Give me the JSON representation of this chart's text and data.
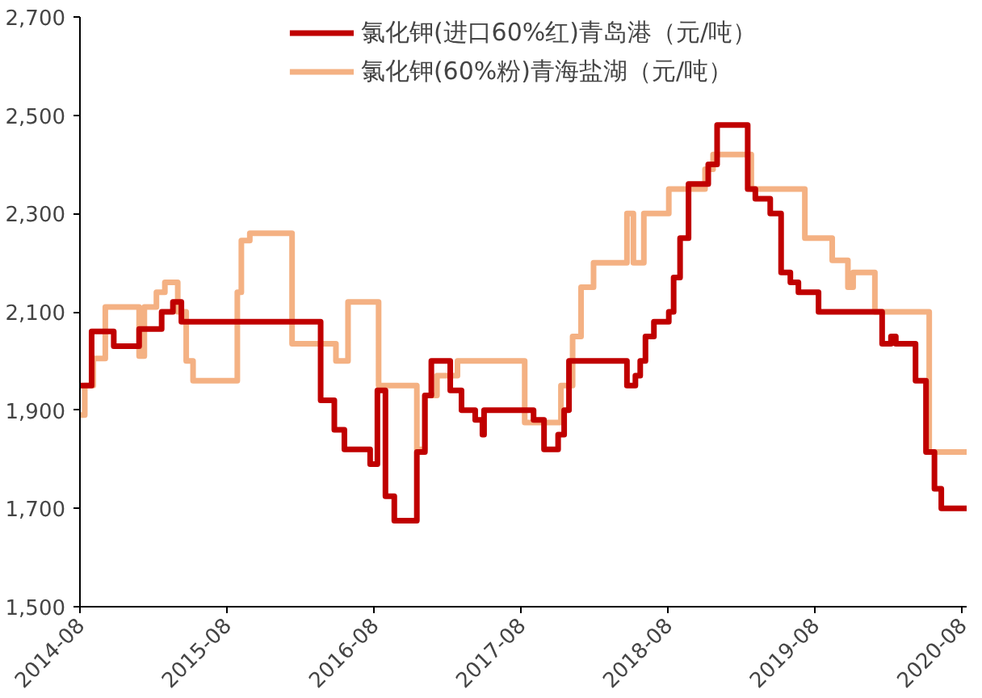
{
  "chart_data": {
    "type": "step",
    "x": [
      "2014-08-01",
      "2014-08-30",
      "2014-10-24",
      "2014-12-26",
      "2015-02-20",
      "2015-03-20",
      "2015-04-10",
      "2016-03-21",
      "2016-04-24",
      "2016-05-19",
      "2016-07-22",
      "2016-08-09",
      "2016-08-29",
      "2016-09-20",
      "2016-11-15",
      "2016-12-05",
      "2016-12-21",
      "2017-02-06",
      "2017-03-06",
      "2017-04-09",
      "2017-04-27",
      "2017-05-01",
      "2017-09-01",
      "2017-09-27",
      "2017-11-01",
      "2017-11-16",
      "2017-11-28",
      "2018-04-21",
      "2018-05-12",
      "2018-05-24",
      "2018-06-06",
      "2018-06-27",
      "2018-08-03",
      "2018-08-15",
      "2018-08-31",
      "2018-09-21",
      "2018-11-09",
      "2018-12-01",
      "2019-02-15",
      "2019-03-06",
      "2019-04-12",
      "2019-05-09",
      "2019-06-01",
      "2019-06-21",
      "2019-08-10",
      "2020-01-15",
      "2020-02-06",
      "2020-02-18",
      "2020-04-07",
      "2020-05-03",
      "2020-05-24",
      "2020-06-10",
      "2020-08-12"
    ],
    "series": [
      {
        "name": "氯化钾(进口60%红)青岛港（元/吨）",
        "color": "#c00000",
        "values": [
          1950,
          2060,
          2030,
          2065,
          2100,
          2120,
          2080,
          1920,
          1860,
          1820,
          1790,
          1940,
          1725,
          1675,
          1815,
          1930,
          2000,
          1940,
          1900,
          1880,
          1850,
          1900,
          1880,
          1820,
          1850,
          1900,
          2000,
          1950,
          1970,
          2000,
          2050,
          2080,
          2100,
          2170,
          2250,
          2360,
          2400,
          2480,
          2350,
          2330,
          2300,
          2180,
          2160,
          2140,
          2100,
          2035,
          2050,
          2035,
          1960,
          1815,
          1740,
          1700,
          1700
        ]
      },
      {
        "name": "氯化钾(60%粉)青海盐湖（元/吨）",
        "color": "#f4b183",
        "x": [
          "2014-08-01",
          "2014-08-13",
          "2014-09-03",
          "2014-10-03",
          "2014-12-26",
          "2015-01-08",
          "2015-02-07",
          "2015-02-28",
          "2015-04-01",
          "2015-04-22",
          "2015-05-09",
          "2015-08-27",
          "2015-09-06",
          "2015-09-27",
          "2016-01-10",
          "2016-04-28",
          "2016-05-28",
          "2016-08-12",
          "2016-11-15",
          "2016-12-05",
          "2017-01-04",
          "2017-02-24",
          "2017-08-10",
          "2017-11-08",
          "2017-12-07",
          "2017-12-28",
          "2018-01-28",
          "2018-04-21",
          "2018-05-07",
          "2018-06-02",
          "2018-08-03",
          "2018-11-01",
          "2018-11-21",
          "2019-02-24",
          "2019-07-07",
          "2019-09-13",
          "2019-10-22",
          "2019-11-04",
          "2019-12-28",
          "2020-05-11",
          "2020-08-12"
        ],
        "values": [
          1890,
          1950,
          2005,
          2110,
          2010,
          2110,
          2140,
          2160,
          2100,
          2000,
          1960,
          2140,
          2245,
          2260,
          2035,
          2000,
          2120,
          1950,
          1820,
          1930,
          1970,
          2000,
          1875,
          1950,
          2050,
          2150,
          2200,
          2300,
          2200,
          2300,
          2350,
          2390,
          2420,
          2350,
          2250,
          2205,
          2150,
          2180,
          2100,
          1815,
          1815
        ]
      }
    ],
    "xlim": [
      "2014-08-01",
      "2020-08-12"
    ],
    "xticks": [
      "2014-08",
      "2015-08",
      "2016-08",
      "2017-08",
      "2018-08",
      "2019-08",
      "2020-08"
    ],
    "ylim": [
      1500,
      2700
    ],
    "yticks": [
      {
        "value": 1500,
        "label": "1,500"
      },
      {
        "value": 1700,
        "label": "1,700"
      },
      {
        "value": 1900,
        "label": "1,900"
      },
      {
        "value": 2100,
        "label": "2,100"
      },
      {
        "value": 2300,
        "label": "2,300"
      },
      {
        "value": 2500,
        "label": "2,500"
      },
      {
        "value": 2700,
        "label": "2,700"
      }
    ],
    "grid": false,
    "legend": "top",
    "line_style": "solid"
  }
}
